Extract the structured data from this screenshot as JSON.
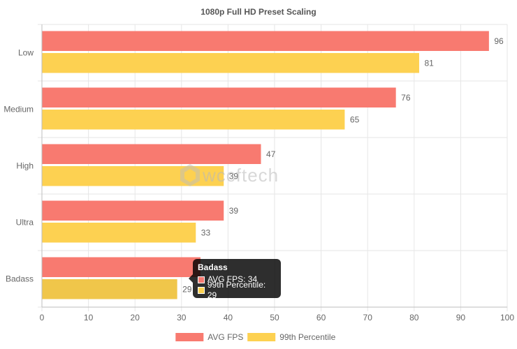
{
  "chart_data": {
    "type": "bar",
    "orientation": "horizontal",
    "title": "1080p Full HD Preset Scaling",
    "categories": [
      "Low",
      "Medium",
      "High",
      "Ultra",
      "Badass"
    ],
    "series": [
      {
        "name": "AVG FPS",
        "color": "#f87a70",
        "values": [
          96,
          76,
          47,
          39,
          34
        ]
      },
      {
        "name": "99th Percentile",
        "color": "#fdd151",
        "values": [
          81,
          65,
          39,
          33,
          29
        ]
      }
    ],
    "xlim": [
      0,
      100
    ],
    "x_ticks": [
      0,
      10,
      20,
      30,
      40,
      50,
      60,
      70,
      80,
      90,
      100
    ],
    "grid": true,
    "legend_position": "bottom"
  },
  "tooltip": {
    "title": "Badass",
    "rows": [
      {
        "label": "AVG FPS: 34",
        "color": "#f87a70"
      },
      {
        "label": "99th Percentile: 29",
        "color": "#fdd151"
      }
    ]
  },
  "watermark": {
    "text": "wccftech"
  }
}
